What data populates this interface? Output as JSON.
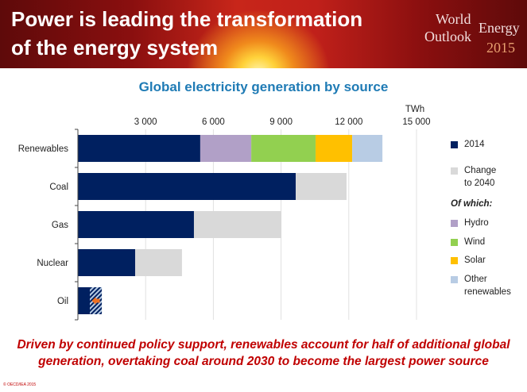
{
  "header": {
    "title_line1": "Power is leading the transformation",
    "title_line2": "of the energy system",
    "logo": {
      "world": "World",
      "energy": "Energy",
      "outlook": "Outlook",
      "year": "2015"
    }
  },
  "chart_data": {
    "type": "bar",
    "orientation": "horizontal",
    "stacked": true,
    "title": "Global electricity generation by source",
    "unit_label": "TWh",
    "xlim": [
      0,
      15000
    ],
    "xticks": [
      3000,
      6000,
      9000,
      12000,
      15000
    ],
    "xtick_labels": [
      "3 000",
      "6 000",
      "9 000",
      "12 000",
      "15 000"
    ],
    "grid": true,
    "legend_placement": "right",
    "categories": [
      "Renewables",
      "Coal",
      "Gas",
      "Nuclear",
      "Oil"
    ],
    "series": [
      {
        "name": "2014",
        "color": "#002060",
        "values": [
          5420,
          9650,
          5140,
          2540,
          1060
        ]
      },
      {
        "name": "Change to 2040",
        "color": "#d9d9d9",
        "values": [
          null,
          2250,
          3870,
          2070,
          -530
        ]
      },
      {
        "name": "Hydro",
        "color": "#b1a0c7",
        "values": [
          2260,
          null,
          null,
          null,
          null
        ]
      },
      {
        "name": "Wind",
        "color": "#92d050",
        "values": [
          2850,
          null,
          null,
          null,
          null
        ]
      },
      {
        "name": "Solar",
        "color": "#ffc000",
        "values": [
          1620,
          null,
          null,
          null,
          null
        ]
      },
      {
        "name": "Other renewables",
        "color": "#b8cce4",
        "values": [
          1340,
          null,
          null,
          null,
          null
        ]
      }
    ],
    "legend": {
      "items": [
        "2014",
        "Change to 2040"
      ],
      "change_label_line1": "Change",
      "change_label_line2": "to 2040",
      "subheading": "Of which:",
      "sub_items": [
        "Hydro",
        "Wind",
        "Solar"
      ],
      "other_line1": "Other",
      "other_line2": "renewables"
    },
    "decline_marker": {
      "category": "Oil",
      "icon": "arrow-left-icon",
      "color": "#f07020",
      "pattern": "hatched"
    }
  },
  "caption": {
    "line1": "Driven by continued policy support, renewables account for half of additional global",
    "line2": "generation, overtaking coal around 2030 to become the largest power source"
  },
  "footer": {
    "copyright": "© OECD/IEA 2015"
  }
}
